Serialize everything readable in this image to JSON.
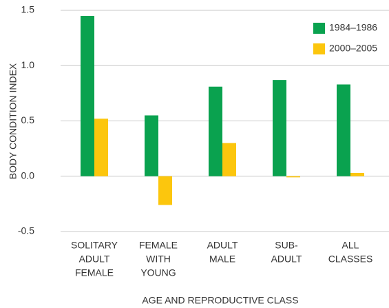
{
  "chart_data": {
    "type": "bar",
    "xlabel": "AGE AND REPRODUCTIVE CLASS",
    "ylabel": "BODY CONDITION INDEX",
    "categories": [
      [
        "SOLITARY",
        "ADULT",
        "FEMALE"
      ],
      [
        "FEMALE",
        "WITH",
        "YOUNG"
      ],
      [
        "ADULT",
        "MALE"
      ],
      [
        "SUB-",
        "ADULT"
      ],
      [
        "ALL",
        "CLASSES"
      ]
    ],
    "series": [
      {
        "name": "1984–1986",
        "color": "#0aa24f",
        "values": [
          1.45,
          0.55,
          0.81,
          0.87,
          0.83
        ]
      },
      {
        "name": "2000–2005",
        "color": "#fcc60d",
        "values": [
          0.52,
          -0.26,
          0.3,
          -0.01,
          0.03
        ]
      }
    ],
    "ylim": [
      -0.5,
      1.5
    ],
    "yticks": [
      {
        "value": 1.5,
        "label": "1.5"
      },
      {
        "value": 1,
        "label": "1.0"
      },
      {
        "value": 0.5,
        "label": "0.5"
      },
      {
        "value": 0,
        "label": "0.0"
      },
      {
        "value": -0.5,
        "label": "-0.5"
      }
    ],
    "grid": true,
    "legend": "upper right"
  }
}
